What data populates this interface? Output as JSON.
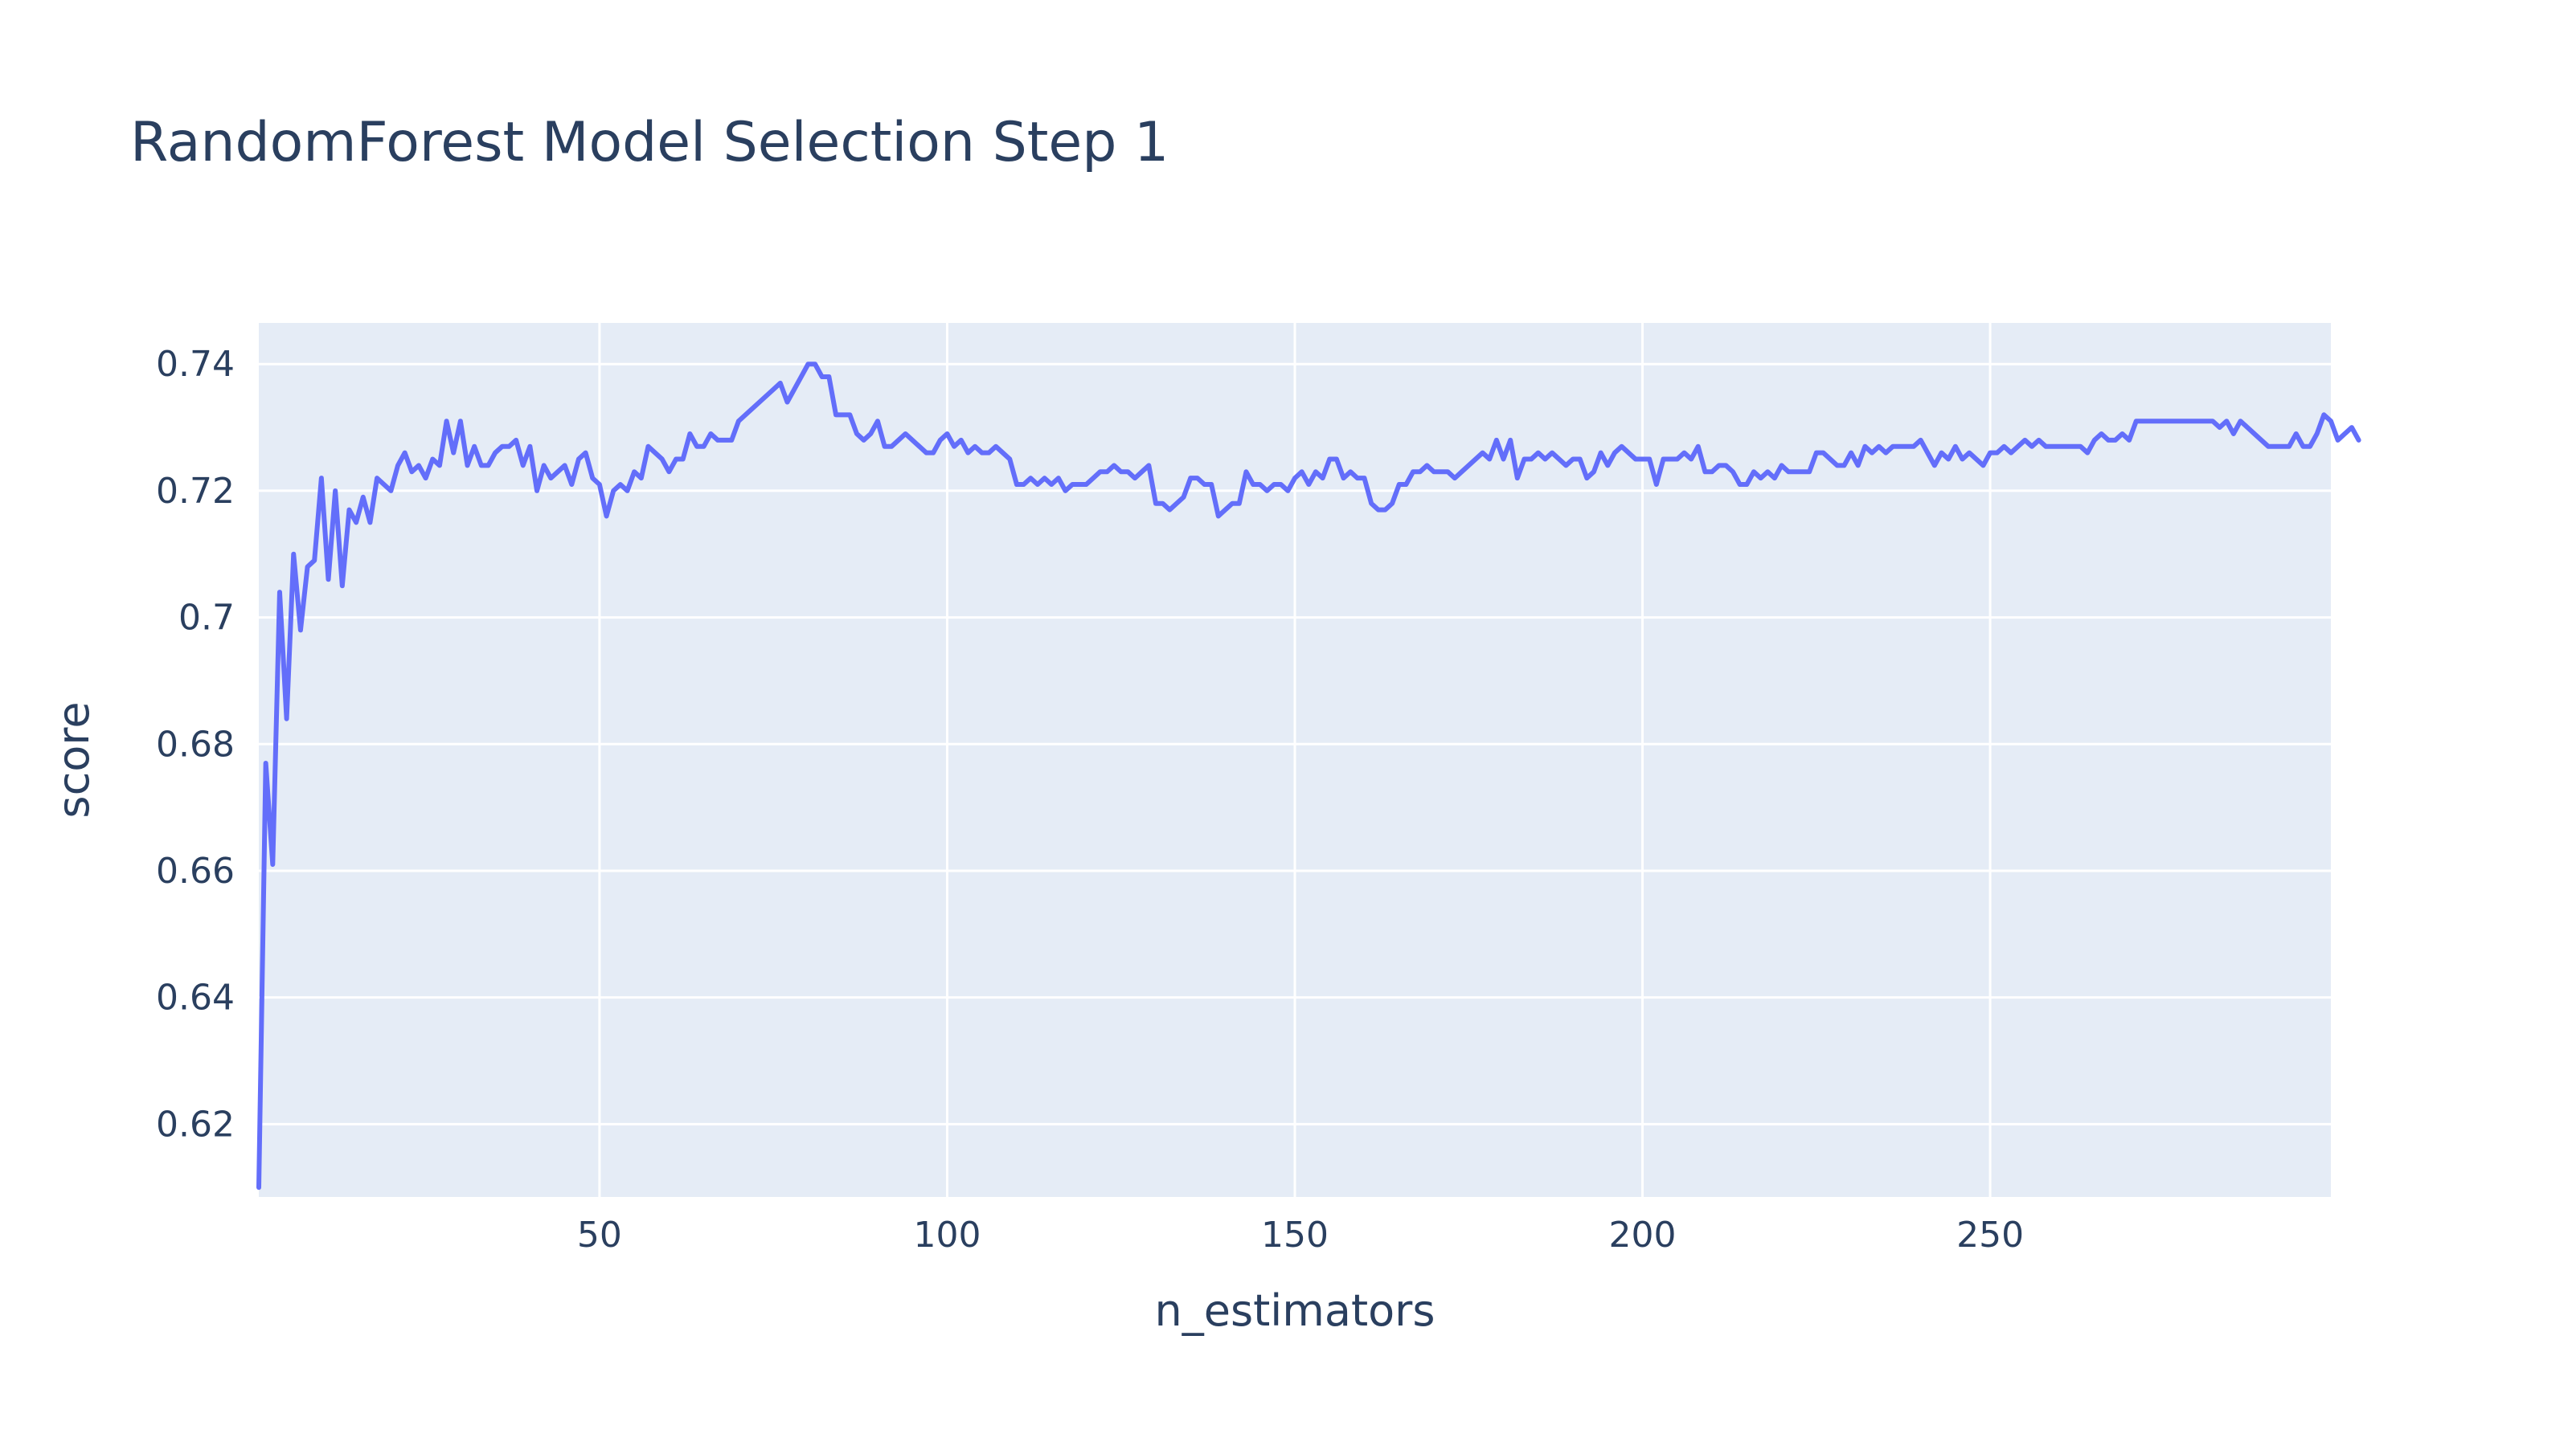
{
  "chart_data": {
    "type": "line",
    "title": "RandomForest Model Selection Step 1",
    "xlabel": "n_estimators",
    "ylabel": "score",
    "xlim": [
      1,
      299
    ],
    "ylim": [
      0.6085,
      0.7465
    ],
    "x_ticks": [
      50,
      100,
      150,
      200,
      250
    ],
    "x_tick_labels": [
      "50",
      "100",
      "150",
      "200",
      "250"
    ],
    "y_ticks": [
      0.62,
      0.64,
      0.66,
      0.68,
      0.7,
      0.72,
      0.74
    ],
    "y_tick_labels": [
      "0.62",
      "0.64",
      "0.66",
      "0.68",
      "0.7",
      "0.72",
      "0.74"
    ],
    "grid": true,
    "colors": {
      "line": "#636efa",
      "plot_bg": "#e5ecf6",
      "grid": "#ffffff",
      "text": "#2a3f5f",
      "paper_bg": "#ffffff"
    },
    "series": [
      {
        "x_start": 1,
        "x_step": 1,
        "values": [
          0.61,
          0.677,
          0.661,
          0.704,
          0.684,
          0.71,
          0.698,
          0.708,
          0.709,
          0.722,
          0.706,
          0.72,
          0.705,
          0.717,
          0.715,
          0.719,
          0.715,
          0.722,
          0.721,
          0.72,
          0.724,
          0.726,
          0.723,
          0.724,
          0.722,
          0.725,
          0.724,
          0.731,
          0.726,
          0.731,
          0.724,
          0.727,
          0.724,
          0.724,
          0.726,
          0.727,
          0.727,
          0.728,
          0.724,
          0.727,
          0.72,
          0.724,
          0.722,
          0.723,
          0.724,
          0.721,
          0.725,
          0.726,
          0.722,
          0.721,
          0.716,
          0.72,
          0.721,
          0.72,
          0.723,
          0.722,
          0.727,
          0.726,
          0.725,
          0.723,
          0.725,
          0.725,
          0.729,
          0.727,
          0.727,
          0.729,
          0.728,
          0.728,
          0.728,
          0.731,
          0.732,
          0.733,
          0.734,
          0.735,
          0.736,
          0.737,
          0.734,
          0.736,
          0.738,
          0.74,
          0.74,
          0.738,
          0.738,
          0.732,
          0.732,
          0.732,
          0.729,
          0.728,
          0.729,
          0.731,
          0.727,
          0.727,
          0.728,
          0.729,
          0.728,
          0.727,
          0.726,
          0.726,
          0.728,
          0.729,
          0.727,
          0.728,
          0.726,
          0.727,
          0.726,
          0.726,
          0.727,
          0.726,
          0.725,
          0.721,
          0.721,
          0.722,
          0.721,
          0.722,
          0.721,
          0.722,
          0.72,
          0.721,
          0.721,
          0.721,
          0.722,
          0.723,
          0.723,
          0.724,
          0.723,
          0.723,
          0.722,
          0.723,
          0.724,
          0.718,
          0.718,
          0.717,
          0.718,
          0.719,
          0.722,
          0.722,
          0.721,
          0.721,
          0.716,
          0.717,
          0.718,
          0.718,
          0.723,
          0.721,
          0.721,
          0.72,
          0.721,
          0.721,
          0.72,
          0.722,
          0.723,
          0.721,
          0.723,
          0.722,
          0.725,
          0.725,
          0.722,
          0.723,
          0.722,
          0.722,
          0.718,
          0.717,
          0.717,
          0.718,
          0.721,
          0.721,
          0.723,
          0.723,
          0.724,
          0.723,
          0.723,
          0.723,
          0.722,
          0.723,
          0.724,
          0.725,
          0.726,
          0.725,
          0.728,
          0.725,
          0.728,
          0.722,
          0.725,
          0.725,
          0.726,
          0.725,
          0.726,
          0.725,
          0.724,
          0.725,
          0.725,
          0.722,
          0.723,
          0.726,
          0.724,
          0.726,
          0.727,
          0.726,
          0.725,
          0.725,
          0.725,
          0.721,
          0.725,
          0.725,
          0.725,
          0.726,
          0.725,
          0.727,
          0.723,
          0.723,
          0.724,
          0.724,
          0.723,
          0.721,
          0.721,
          0.723,
          0.722,
          0.723,
          0.722,
          0.724,
          0.723,
          0.723,
          0.723,
          0.723,
          0.726,
          0.726,
          0.725,
          0.724,
          0.724,
          0.726,
          0.724,
          0.727,
          0.726,
          0.727,
          0.726,
          0.727,
          0.727,
          0.727,
          0.727,
          0.728,
          0.726,
          0.724,
          0.726,
          0.725,
          0.727,
          0.725,
          0.726,
          0.725,
          0.724,
          0.726,
          0.726,
          0.727,
          0.726,
          0.727,
          0.728,
          0.727,
          0.728,
          0.727,
          0.727,
          0.727,
          0.727,
          0.727,
          0.727,
          0.726,
          0.728,
          0.729,
          0.728,
          0.728,
          0.729,
          0.728,
          0.731,
          0.731,
          0.731,
          0.731,
          0.731,
          0.731,
          0.731,
          0.731,
          0.731,
          0.731,
          0.731,
          0.731,
          0.73,
          0.731,
          0.729,
          0.731,
          0.73,
          0.729,
          0.728,
          0.727,
          0.727,
          0.727,
          0.727,
          0.729,
          0.727,
          0.727,
          0.729,
          0.732,
          0.731,
          0.728,
          0.729,
          0.73,
          0.728
        ]
      }
    ]
  }
}
